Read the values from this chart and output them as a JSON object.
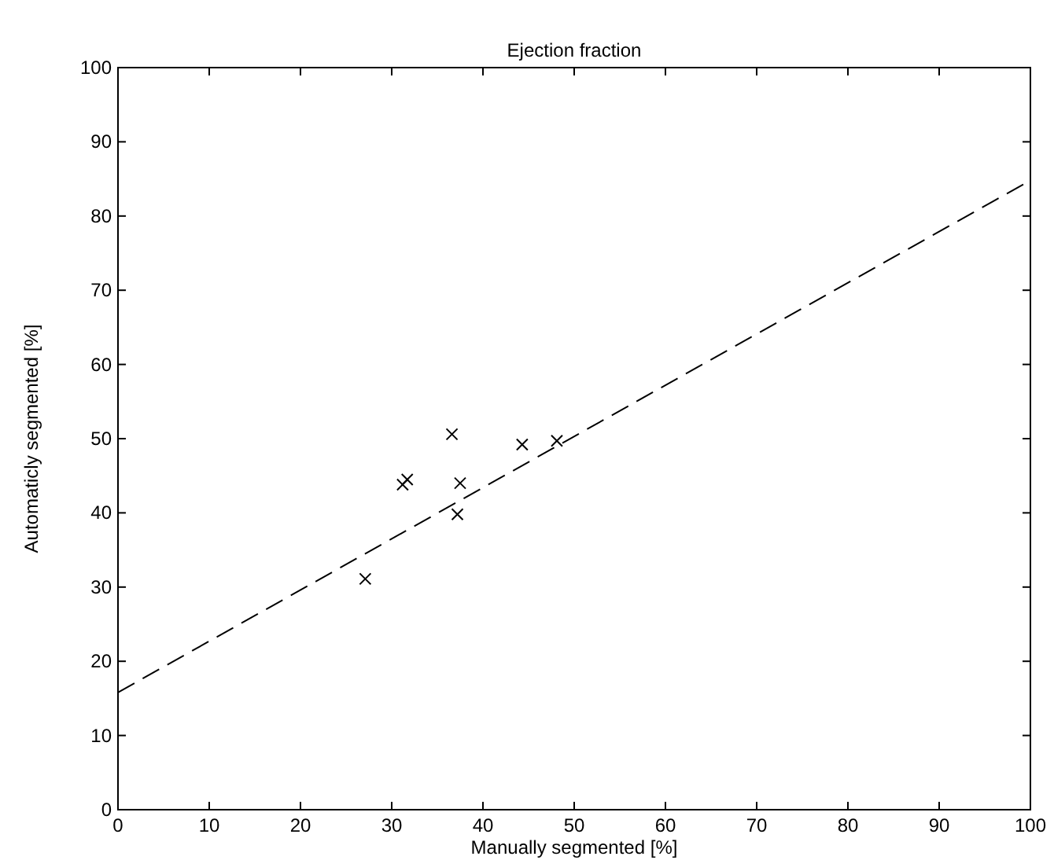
{
  "chart_data": {
    "type": "scatter",
    "title": "Ejection fraction",
    "xlabel": "Manually segmented [%]",
    "ylabel": "Automaticly segmented [%]",
    "xlim": [
      0,
      100
    ],
    "ylim": [
      0,
      100
    ],
    "xticks": [
      0,
      10,
      20,
      30,
      40,
      50,
      60,
      70,
      80,
      90,
      100
    ],
    "yticks": [
      0,
      10,
      20,
      30,
      40,
      50,
      60,
      70,
      80,
      90,
      100
    ],
    "grid": false,
    "series": [
      {
        "color": "#000000",
        "marker": "cross",
        "x": [
          27.1,
          31.2,
          31.7,
          36.6,
          37.5,
          37.2,
          44.3,
          48.1
        ],
        "values": [
          31.1,
          43.8,
          44.5,
          50.6,
          44.0,
          39.8,
          49.2,
          49.7
        ]
      },
      {
        "type": "line",
        "color": "#000000",
        "marker": "none",
        "line_style": "dashed",
        "x": [
          0,
          100
        ],
        "values": [
          15.8,
          84.8
        ]
      }
    ]
  }
}
